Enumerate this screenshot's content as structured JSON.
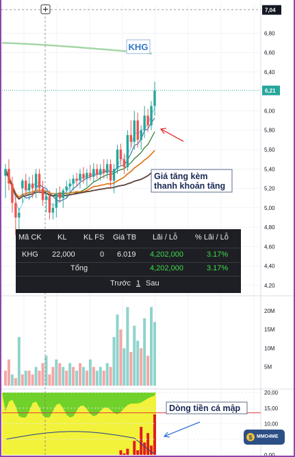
{
  "chart_data": [
    {
      "type": "candlestick",
      "ticker_label": "KHG",
      "y_ticks": [
        "6,80",
        "6,60",
        "6,40",
        "6,00",
        "5,80",
        "5,60",
        "5,40",
        "5,20",
        "5,00",
        "4,80",
        "4,60",
        "4,40",
        "4,20"
      ],
      "ylim": [
        4.1,
        7.1
      ],
      "crosshair_label": "7,04",
      "last_price_label": "6,21",
      "last_price": 6.21,
      "crosshair_price": 7.04,
      "candles": [
        {
          "o": 5.33,
          "h": 5.45,
          "l": 5.1,
          "c": 5.4,
          "up": true
        },
        {
          "o": 5.4,
          "h": 5.5,
          "l": 5.18,
          "c": 5.25,
          "up": false
        },
        {
          "o": 5.25,
          "h": 5.32,
          "l": 4.95,
          "c": 5.05,
          "up": false
        },
        {
          "o": 5.05,
          "h": 5.12,
          "l": 4.72,
          "c": 4.9,
          "up": false
        },
        {
          "o": 4.9,
          "h": 5.0,
          "l": 4.75,
          "c": 4.95,
          "up": true
        },
        {
          "o": 5.2,
          "h": 5.3,
          "l": 5.05,
          "c": 5.28,
          "up": true
        },
        {
          "o": 5.28,
          "h": 5.35,
          "l": 5.12,
          "c": 5.18,
          "up": false
        },
        {
          "o": 5.18,
          "h": 5.32,
          "l": 5.08,
          "c": 5.25,
          "up": true
        },
        {
          "o": 5.25,
          "h": 5.34,
          "l": 5.1,
          "c": 5.2,
          "up": false
        },
        {
          "o": 5.2,
          "h": 5.4,
          "l": 5.1,
          "c": 5.35,
          "up": true
        },
        {
          "o": 5.35,
          "h": 5.4,
          "l": 5.15,
          "c": 5.2,
          "up": false
        },
        {
          "o": 5.2,
          "h": 5.28,
          "l": 5.02,
          "c": 5.08,
          "up": false
        },
        {
          "o": 5.08,
          "h": 5.18,
          "l": 4.95,
          "c": 5.12,
          "up": true
        },
        {
          "o": 5.12,
          "h": 5.18,
          "l": 4.88,
          "c": 4.95,
          "up": false
        },
        {
          "o": 4.95,
          "h": 5.05,
          "l": 4.88,
          "c": 5.0,
          "up": true
        },
        {
          "o": 5.0,
          "h": 5.2,
          "l": 4.9,
          "c": 5.15,
          "up": true
        },
        {
          "o": 5.15,
          "h": 5.22,
          "l": 5.05,
          "c": 5.1,
          "up": false
        },
        {
          "o": 5.1,
          "h": 5.2,
          "l": 5.0,
          "c": 5.18,
          "up": true
        },
        {
          "o": 5.18,
          "h": 5.28,
          "l": 5.1,
          "c": 5.22,
          "up": true
        },
        {
          "o": 5.22,
          "h": 5.3,
          "l": 5.15,
          "c": 5.25,
          "up": true
        },
        {
          "o": 5.25,
          "h": 5.34,
          "l": 5.18,
          "c": 5.3,
          "up": true
        },
        {
          "o": 5.3,
          "h": 5.36,
          "l": 5.22,
          "c": 5.28,
          "up": false
        },
        {
          "o": 5.28,
          "h": 5.4,
          "l": 5.2,
          "c": 5.35,
          "up": true
        },
        {
          "o": 5.35,
          "h": 5.42,
          "l": 5.25,
          "c": 5.3,
          "up": false
        },
        {
          "o": 5.3,
          "h": 5.4,
          "l": 5.22,
          "c": 5.36,
          "up": true
        },
        {
          "o": 5.36,
          "h": 5.44,
          "l": 5.28,
          "c": 5.32,
          "up": false
        },
        {
          "o": 5.32,
          "h": 5.46,
          "l": 5.26,
          "c": 5.4,
          "up": true
        },
        {
          "o": 5.4,
          "h": 5.45,
          "l": 5.3,
          "c": 5.34,
          "up": false
        },
        {
          "o": 5.34,
          "h": 5.45,
          "l": 5.28,
          "c": 5.4,
          "up": true
        },
        {
          "o": 5.4,
          "h": 5.5,
          "l": 5.3,
          "c": 5.36,
          "up": false
        },
        {
          "o": 5.36,
          "h": 5.5,
          "l": 5.3,
          "c": 5.45,
          "up": true
        },
        {
          "o": 5.45,
          "h": 5.5,
          "l": 5.2,
          "c": 5.28,
          "up": false
        },
        {
          "o": 5.28,
          "h": 5.45,
          "l": 5.15,
          "c": 5.4,
          "up": true
        },
        {
          "o": 5.4,
          "h": 5.65,
          "l": 5.35,
          "c": 5.6,
          "up": true
        },
        {
          "o": 5.6,
          "h": 5.66,
          "l": 5.44,
          "c": 5.5,
          "up": false
        },
        {
          "o": 5.5,
          "h": 5.56,
          "l": 5.35,
          "c": 5.42,
          "up": false
        },
        {
          "o": 5.42,
          "h": 5.8,
          "l": 5.38,
          "c": 5.75,
          "up": true
        },
        {
          "o": 5.75,
          "h": 5.9,
          "l": 5.62,
          "c": 5.68,
          "up": false
        },
        {
          "o": 5.68,
          "h": 6.0,
          "l": 5.6,
          "c": 5.9,
          "up": true
        },
        {
          "o": 5.9,
          "h": 5.98,
          "l": 5.62,
          "c": 5.7,
          "up": false
        },
        {
          "o": 5.7,
          "h": 5.85,
          "l": 5.6,
          "c": 5.8,
          "up": true
        },
        {
          "o": 5.8,
          "h": 6.05,
          "l": 5.72,
          "c": 5.95,
          "up": true
        },
        {
          "o": 5.95,
          "h": 6.02,
          "l": 5.78,
          "c": 5.85,
          "up": false
        },
        {
          "o": 5.85,
          "h": 6.1,
          "l": 5.8,
          "c": 6.05,
          "up": true
        },
        {
          "o": 6.05,
          "h": 6.3,
          "l": 5.95,
          "c": 6.21,
          "up": true
        }
      ],
      "volume_ticks": [
        "20M",
        "15M",
        "10M",
        "5M"
      ],
      "volume_max": 22,
      "volumes": [
        {
          "v": 4,
          "up": false
        },
        {
          "v": 7,
          "up": false
        },
        {
          "v": 3,
          "up": true
        },
        {
          "v": 2,
          "up": false
        },
        {
          "v": 13,
          "up": true
        },
        {
          "v": 3,
          "up": false
        },
        {
          "v": 4,
          "up": true
        },
        {
          "v": 4,
          "up": false
        },
        {
          "v": 3,
          "up": false
        },
        {
          "v": 5,
          "up": true
        },
        {
          "v": 4,
          "up": false
        },
        {
          "v": 6,
          "up": false
        },
        {
          "v": 8,
          "up": true
        },
        {
          "v": 3,
          "up": false
        },
        {
          "v": 5,
          "up": false
        },
        {
          "v": 7,
          "up": true
        },
        {
          "v": 6,
          "up": false
        },
        {
          "v": 5,
          "up": true
        },
        {
          "v": 4,
          "up": false
        },
        {
          "v": 6,
          "up": true
        },
        {
          "v": 5,
          "up": false
        },
        {
          "v": 4,
          "up": true
        },
        {
          "v": 6,
          "up": false
        },
        {
          "v": 5,
          "up": true
        },
        {
          "v": 4,
          "up": false
        },
        {
          "v": 7,
          "up": true
        },
        {
          "v": 5,
          "up": false
        },
        {
          "v": 4,
          "up": true
        },
        {
          "v": 5,
          "up": true
        },
        {
          "v": 4,
          "up": false
        },
        {
          "v": 6,
          "up": true
        },
        {
          "v": 5,
          "up": false
        },
        {
          "v": 13,
          "up": true
        },
        {
          "v": 19,
          "up": true
        },
        {
          "v": 15,
          "up": false
        },
        {
          "v": 10,
          "up": true
        },
        {
          "v": 21,
          "up": true
        },
        {
          "v": 9,
          "up": false
        },
        {
          "v": 16,
          "up": true
        },
        {
          "v": 12,
          "up": true
        },
        {
          "v": 10,
          "up": false
        },
        {
          "v": 18,
          "up": true
        },
        {
          "v": 8,
          "up": false
        },
        {
          "v": 21,
          "up": true
        },
        {
          "v": 17,
          "up": true
        }
      ],
      "flow_ticks": [
        "20,00",
        "15,00",
        "10,00",
        "5,00",
        "0,00"
      ],
      "flow_max": 20,
      "flow_red": [
        0,
        0,
        0,
        0,
        0,
        0,
        0,
        0,
        0,
        0,
        0,
        0,
        0,
        0,
        0,
        0,
        0,
        0,
        0,
        0,
        0,
        0,
        0,
        0,
        0,
        0,
        0,
        0,
        0,
        0,
        0,
        0,
        0,
        0,
        1.5,
        0.5,
        2,
        0,
        4.5,
        1.5,
        9,
        4,
        7,
        3,
        13
      ]
    }
  ],
  "annotations": {
    "ticker_box": "KHG",
    "price_note_line1": "Giá tăng kèm",
    "price_note_line2": "thanh khoản tăng",
    "flow_note": "Dòng tiền cá mập",
    "badge": "MMO4ME"
  },
  "table": {
    "headers": [
      "Mã CK",
      "KL",
      "KL FS",
      "Giá TB",
      "Lãi / Lỗ",
      "% Lãi / Lỗ"
    ],
    "row": [
      "KHG",
      "22,000",
      "0",
      "6.019",
      "4,202,000",
      "3.17%"
    ],
    "total_label": "Tổng",
    "total_pl": "4,202,000",
    "total_pct": "3.17%",
    "pager_prev": "Trước",
    "pager_page": "1",
    "pager_next": "Sau"
  },
  "colors": {
    "up": "#26a69a",
    "down": "#ef5350",
    "vol_up": "#8fd3cc",
    "vol_down": "#f4a6a6",
    "gain_text": "#3ddc4a",
    "flow_green": "#6fd12a",
    "flow_yellow": "#f2f23a",
    "flow_red": "#e21e1e"
  }
}
